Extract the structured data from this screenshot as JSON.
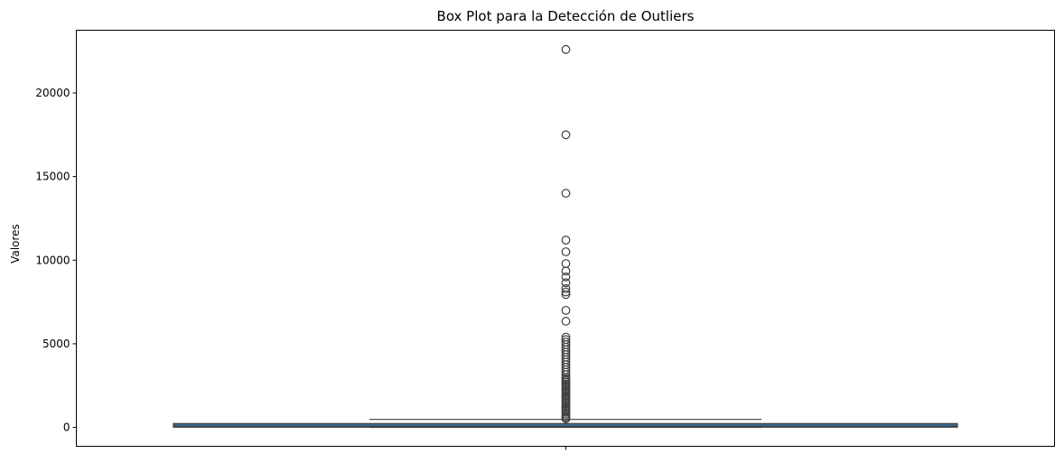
{
  "chart_data": {
    "type": "box",
    "title": "Box Plot para la Detección de Outliers",
    "xlabel": "",
    "ylabel": "Valores",
    "yticks": [
      0,
      5000,
      10000,
      15000,
      20000
    ],
    "ylim": [
      -1130,
      23750
    ],
    "grid": false,
    "box": {
      "q1": 15,
      "median": 60,
      "q3": 230,
      "whisker_low": 0,
      "whisker_high": 480,
      "color": "#3a6b95"
    },
    "outliers": [
      22600,
      17500,
      14000,
      11200,
      10500,
      9800,
      9350,
      9000,
      8650,
      8300,
      8100,
      7950,
      7000,
      6350,
      5400,
      5250,
      5100,
      4950,
      4800,
      4650,
      4500,
      4350,
      4200,
      4050,
      3900,
      3750,
      3600,
      3450,
      3300,
      3150,
      3000,
      2900,
      2800,
      2700,
      2600,
      2500,
      2400,
      2300,
      2200,
      2100,
      2000,
      1900,
      1800,
      1700,
      1600,
      1500,
      1400,
      1300,
      1200,
      1100,
      1000,
      900,
      800,
      700,
      600,
      520
    ]
  }
}
